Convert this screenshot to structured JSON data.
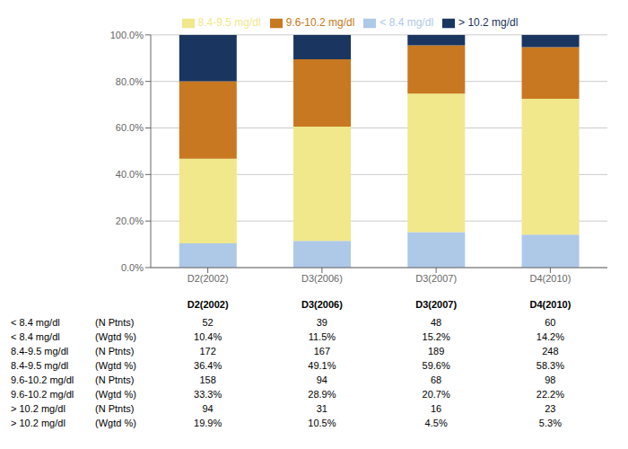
{
  "chart_data": {
    "type": "bar",
    "stacked": true,
    "grid": true,
    "legend": "top",
    "categories": [
      "D2(2002)",
      "D3(2006)",
      "D3(2007)",
      "D4(2010)"
    ],
    "series": [
      {
        "name": "< 8.4 mg/dl",
        "color": "#aec8e8",
        "values": [
          10.4,
          11.5,
          15.2,
          14.2
        ]
      },
      {
        "name": "8.4-9.5 mg/dl",
        "color": "#f0e88a",
        "values": [
          36.4,
          49.1,
          59.6,
          58.3
        ]
      },
      {
        "name": "9.6-10.2 mg/dl",
        "color": "#c87820",
        "values": [
          33.3,
          28.9,
          20.7,
          22.2
        ]
      },
      {
        "name": "> 10.2 mg/dl",
        "color": "#1a3560",
        "values": [
          19.9,
          10.5,
          4.5,
          5.3
        ]
      }
    ],
    "ylim": [
      0,
      100
    ],
    "yticks": [
      {
        "value": 0,
        "label": "0.0%"
      },
      {
        "value": 20,
        "label": "20.0%"
      },
      {
        "value": 40,
        "label": "40.0%"
      },
      {
        "value": 60,
        "label": "60.0%"
      },
      {
        "value": 80,
        "label": "80.0%"
      },
      {
        "value": 100,
        "label": "100.0%"
      }
    ],
    "table": {
      "header": [
        "D2(2002)",
        "D3(2006)",
        "D3(2007)",
        "D4(2010)"
      ],
      "rows": [
        [
          "< 8.4 mg/dl",
          "(N Ptnts)",
          "52",
          "39",
          "48",
          "60"
        ],
        [
          "< 8.4 mg/dl",
          "(Wgtd %)",
          "10.4%",
          "11.5%",
          "15.2%",
          "14.2%"
        ],
        [
          "8.4-9.5 mg/dl",
          "(N Ptnts)",
          "172",
          "167",
          "189",
          "248"
        ],
        [
          "8.4-9.5 mg/dl",
          "(Wgtd %)",
          "36.4%",
          "49.1%",
          "59.6%",
          "58.3%"
        ],
        [
          "9.6-10.2 mg/dl",
          "(N Ptnts)",
          "158",
          "94",
          "68",
          "98"
        ],
        [
          "9.6-10.2 mg/dl",
          "(Wgtd %)",
          "33.3%",
          "28.9%",
          "20.7%",
          "22.2%"
        ],
        [
          "> 10.2 mg/dl",
          "(N Ptnts)",
          "94",
          "31",
          "16",
          "23"
        ],
        [
          "> 10.2 mg/dl",
          "(Wgtd %)",
          "19.9%",
          "10.5%",
          "4.5%",
          "5.3%"
        ]
      ]
    }
  }
}
